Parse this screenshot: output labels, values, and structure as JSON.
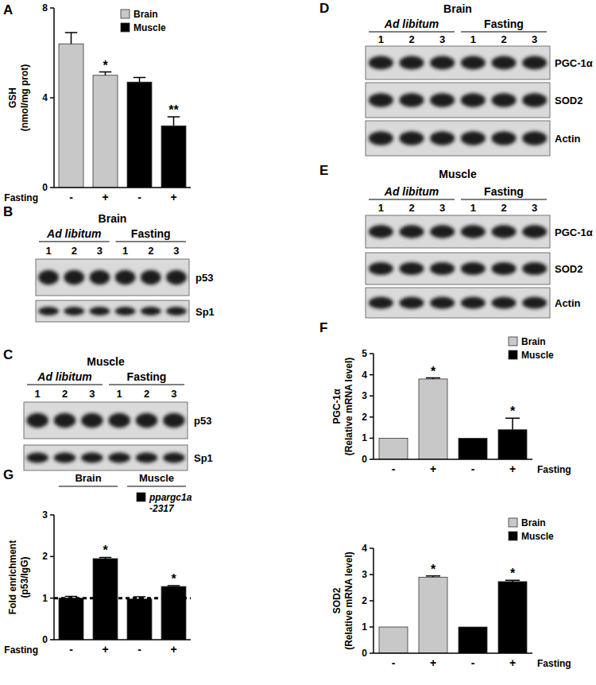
{
  "chart_data": [
    {
      "panel": "A",
      "type": "bar",
      "categories": [
        "-",
        "+",
        "-",
        "+"
      ],
      "x_label": "Fasting",
      "y_label": "GSH\n(nmol/mg prot)",
      "ylim": [
        0,
        8
      ],
      "yticks": [
        0,
        4,
        8
      ],
      "legend": "top-right",
      "series": [
        {
          "name": "Brain",
          "color": "#c8c8c8",
          "values": [
            6.4,
            5.0,
            null,
            null
          ],
          "errors": [
            0.5,
            0.15,
            null,
            null
          ],
          "significance": [
            null,
            "*",
            null,
            null
          ]
        },
        {
          "name": "Muscle",
          "color": "#000000",
          "values": [
            null,
            null,
            4.7,
            2.75
          ],
          "errors": [
            null,
            null,
            0.2,
            0.4
          ],
          "significance": [
            null,
            null,
            null,
            "**"
          ]
        }
      ]
    },
    {
      "panel": "F",
      "type": "bar",
      "categories": [
        "-",
        "+",
        "-",
        "+"
      ],
      "x_label": "Fasting",
      "y_label": "PGC-1α\n(Relative mRNA level)",
      "ylim": [
        0,
        5
      ],
      "yticks": [
        0,
        1,
        2,
        3,
        4,
        5
      ],
      "legend": "top-right",
      "series": [
        {
          "name": "Brain",
          "color": "#c8c8c8",
          "values": [
            1,
            3.8,
            null,
            null
          ],
          "errors": [
            0,
            0.05,
            null,
            null
          ],
          "significance": [
            null,
            "*",
            null,
            null
          ]
        },
        {
          "name": "Muscle",
          "color": "#000000",
          "values": [
            null,
            null,
            1,
            1.4
          ],
          "errors": [
            null,
            null,
            0,
            0.55
          ],
          "significance": [
            null,
            null,
            null,
            "*"
          ]
        }
      ]
    },
    {
      "type": "bar",
      "categories": [
        "-",
        "+",
        "-",
        "+"
      ],
      "x_label": "Fasting",
      "y_label": "SOD2\n(Relative mRNA level)",
      "ylim": [
        0,
        4
      ],
      "yticks": [
        0,
        1,
        2,
        3,
        4
      ],
      "legend": "top-right",
      "series": [
        {
          "name": "Brain",
          "color": "#c8c8c8",
          "values": [
            1,
            2.9,
            null,
            null
          ],
          "errors": [
            0,
            0.05,
            null,
            null
          ],
          "significance": [
            null,
            "*",
            null,
            null
          ]
        },
        {
          "name": "Muscle",
          "color": "#000000",
          "values": [
            null,
            null,
            1,
            2.73
          ],
          "errors": [
            null,
            null,
            0,
            0.05
          ],
          "significance": [
            null,
            null,
            null,
            "*"
          ]
        }
      ]
    },
    {
      "panel": "G",
      "type": "bar",
      "categories": [
        "-",
        "+",
        "-",
        "+"
      ],
      "groups": [
        "Brain",
        "Muscle"
      ],
      "x_label": "Fasting",
      "y_label": "Fold enrichment\n(p53/IgG)",
      "ylim": [
        0,
        3
      ],
      "yticks": [
        0,
        1,
        2,
        3
      ],
      "legend": "top-right",
      "reference": 1,
      "series": [
        {
          "name": "ppargc1a -2317",
          "color": "#000000",
          "values": [
            1.0,
            1.95,
            0.98,
            1.28
          ],
          "errors": [
            0.04,
            0.03,
            0.05,
            0.02
          ],
          "significance": [
            null,
            "*",
            null,
            "*"
          ]
        }
      ]
    }
  ],
  "blots": [
    {
      "panel": "B",
      "title": "Brain",
      "groups": [
        "Ad libitum",
        "Fasting"
      ],
      "lanes": [
        "1",
        "2",
        "3",
        "1",
        "2",
        "3"
      ],
      "rows": [
        "p53",
        "Sp1"
      ]
    },
    {
      "panel": "C",
      "title": "Muscle",
      "groups": [
        "Ad libitum",
        "Fasting"
      ],
      "lanes": [
        "1",
        "2",
        "3",
        "1",
        "2",
        "3"
      ],
      "rows": [
        "p53",
        "Sp1"
      ]
    },
    {
      "panel": "D",
      "title": "Brain",
      "groups": [
        "Ad libitum",
        "Fasting"
      ],
      "lanes": [
        "1",
        "2",
        "3",
        "1",
        "2",
        "3"
      ],
      "rows": [
        "PGC-1α",
        "SOD2",
        "Actin"
      ]
    },
    {
      "panel": "E",
      "title": "Muscle",
      "groups": [
        "Ad libitum",
        "Fasting"
      ],
      "lanes": [
        "1",
        "2",
        "3",
        "1",
        "2",
        "3"
      ],
      "rows": [
        "PGC-1α",
        "SOD2",
        "Actin"
      ]
    }
  ]
}
